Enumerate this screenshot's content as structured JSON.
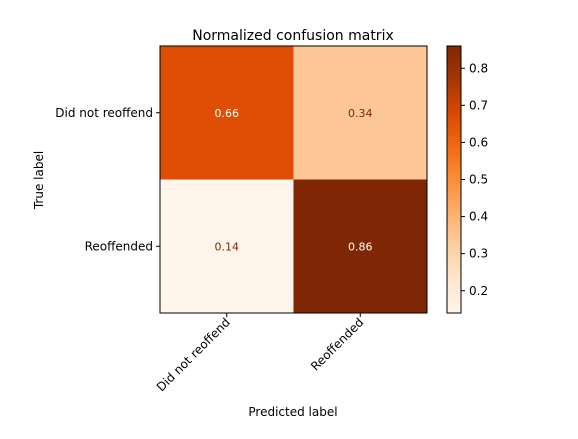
{
  "chart_data": {
    "type": "heatmap",
    "title": "Normalized confusion matrix",
    "xlabel": "Predicted label",
    "ylabel": "True label",
    "row_labels": [
      "Did not reoffend",
      "Reoffended"
    ],
    "col_labels": [
      "Did not reoffend",
      "Reoffended"
    ],
    "values": [
      [
        0.66,
        0.34
      ],
      [
        0.14,
        0.86
      ]
    ],
    "cell_labels": [
      [
        "0.66",
        "0.34"
      ],
      [
        "0.14",
        "0.86"
      ]
    ],
    "colormap": "Oranges",
    "colorbar": {
      "range": [
        0.14,
        0.86
      ],
      "ticks": [
        0.2,
        0.3,
        0.4,
        0.5,
        0.6,
        0.7,
        0.8
      ],
      "tick_labels": [
        "0.2",
        "0.3",
        "0.4",
        "0.5",
        "0.6",
        "0.7",
        "0.8"
      ]
    }
  }
}
